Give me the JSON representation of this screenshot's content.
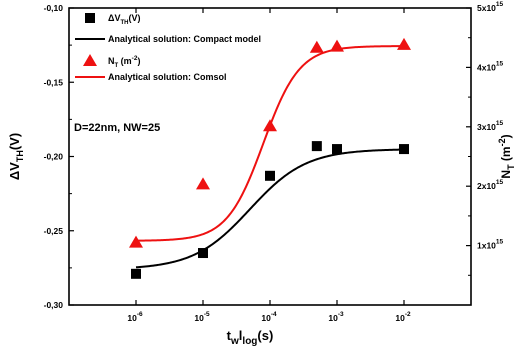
{
  "chart_data": {
    "type": "scatter",
    "x_scale": "log10",
    "x": [
      1e-06,
      1e-05,
      0.0001,
      0.0005,
      0.001,
      0.01
    ],
    "xlim": [
      1e-07,
      0.1
    ],
    "xticks": [
      {
        "value": 1e-06,
        "base": "10",
        "exp": "-6"
      },
      {
        "value": 1e-05,
        "base": "10",
        "exp": "-5"
      },
      {
        "value": 0.0001,
        "base": "10",
        "exp": "-4"
      },
      {
        "value": 0.001,
        "base": "10",
        "exp": "-3"
      },
      {
        "value": 0.01,
        "base": "10",
        "exp": "-2"
      }
    ],
    "xlabel": {
      "main": "t",
      "sub": "w",
      "rest": "l",
      "sub2": "log",
      "unit": "(s)"
    },
    "left_axis": {
      "label": {
        "main": "ΔV",
        "sub": "TH",
        "unit": "(V)"
      },
      "ylim": [
        -0.3,
        -0.1
      ],
      "ticks": [
        {
          "value": -0.3,
          "label": "-0,30"
        },
        {
          "value": -0.25,
          "label": "-0,25"
        },
        {
          "value": -0.2,
          "label": "-0,20"
        },
        {
          "value": -0.15,
          "label": "-0,15"
        },
        {
          "value": -0.1,
          "label": "-0,10"
        }
      ]
    },
    "right_axis": {
      "label": {
        "main": "N",
        "sub": "T",
        "unit": "(m",
        "sup": "-2",
        "close": ")"
      },
      "ylim": [
        0,
        5000000000000000.0
      ],
      "ticks": [
        {
          "value": 1000000000000000.0,
          "mant": "1x10",
          "exp": "15"
        },
        {
          "value": 2000000000000000.0,
          "mant": "2x10",
          "exp": "15"
        },
        {
          "value": 3000000000000000.0,
          "mant": "3x10",
          "exp": "15"
        },
        {
          "value": 4000000000000000.0,
          "mant": "4x10",
          "exp": "15"
        },
        {
          "value": 5000000000000000.0,
          "mant": "5x10",
          "exp": "15"
        }
      ]
    },
    "series": [
      {
        "name": "ΔV_TH(V)",
        "legend": {
          "main": "ΔV",
          "sub": "TH",
          "rest": "(V)"
        },
        "axis": "left",
        "kind": "markers",
        "marker": "square",
        "color": "#000000",
        "points": [
          {
            "x": 1e-06,
            "y": -0.279
          },
          {
            "x": 1e-05,
            "y": -0.265
          },
          {
            "x": 0.0001,
            "y": -0.213
          },
          {
            "x": 0.0005,
            "y": -0.193
          },
          {
            "x": 0.001,
            "y": -0.195
          },
          {
            "x": 0.01,
            "y": -0.195
          }
        ]
      },
      {
        "name": "Analytical solution: Compact model",
        "legend": {
          "main": "Analytical solution: Compact model"
        },
        "axis": "left",
        "kind": "curve",
        "color": "#000000",
        "y_baseline": -0.276,
        "y_plateau": -0.195,
        "log_t_mid": -4.3,
        "width": 0.42
      },
      {
        "name": "N_T (m^-2)",
        "legend": {
          "main": "N",
          "sub": "T",
          "rest": " (m",
          "sup": "-2",
          "close": ")"
        },
        "axis": "right",
        "kind": "markers",
        "marker": "triangle",
        "color": "#ee1111",
        "points": [
          {
            "x": 1e-06,
            "y": 1050000000000000.0
          },
          {
            "x": 1e-05,
            "y": 2030000000000000.0
          },
          {
            "x": 0.0001,
            "y": 3010000000000000.0
          },
          {
            "x": 0.0005,
            "y": 4330000000000000.0
          },
          {
            "x": 0.001,
            "y": 4350000000000000.0
          },
          {
            "x": 0.01,
            "y": 4380000000000000.0
          }
        ]
      },
      {
        "name": "Analytical solution: Comsol",
        "legend": {
          "main": "Analytical solution: Comsol"
        },
        "axis": "right",
        "kind": "curve",
        "color": "#ee1111",
        "y_baseline": 1080000000000000.0,
        "y_plateau": 4360000000000000.0,
        "log_t_mid": -4.1,
        "width": 0.27
      }
    ],
    "annotation": "D=22nm, NW=25",
    "legend_position": "top-left",
    "grid": false
  }
}
